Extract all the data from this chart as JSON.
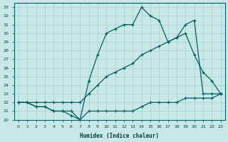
{
  "xlabel": "Humidex (Indice chaleur)",
  "bg_color": "#c8e8e8",
  "line_color": "#006060",
  "xlim": [
    -0.5,
    23.5
  ],
  "ylim": [
    20,
    33.5
  ],
  "xticks": [
    0,
    1,
    2,
    3,
    4,
    5,
    6,
    7,
    8,
    9,
    10,
    11,
    12,
    13,
    14,
    15,
    16,
    17,
    18,
    19,
    20,
    21,
    22,
    23
  ],
  "yticks": [
    20,
    21,
    22,
    23,
    24,
    25,
    26,
    27,
    28,
    29,
    30,
    31,
    32,
    33
  ],
  "line1_x": [
    0,
    1,
    2,
    3,
    4,
    5,
    6,
    7,
    8,
    9,
    10,
    11,
    12,
    13,
    14,
    15,
    16,
    17,
    18,
    19,
    20,
    21,
    22,
    23
  ],
  "line1_y": [
    22,
    22,
    21.5,
    21.5,
    21,
    21,
    20.5,
    20,
    24.5,
    27.5,
    30,
    30.5,
    31,
    31,
    33,
    32,
    31.5,
    29,
    29.5,
    31,
    31.5,
    23,
    23,
    23
  ],
  "line2_x": [
    0,
    1,
    2,
    3,
    4,
    5,
    6,
    7,
    8,
    9,
    10,
    11,
    12,
    13,
    14,
    15,
    16,
    17,
    18,
    19,
    20,
    21,
    22,
    23
  ],
  "line2_y": [
    22,
    22,
    22,
    22,
    22,
    22,
    22,
    22,
    23,
    24,
    25,
    25.5,
    26,
    26.5,
    27.5,
    28,
    28.5,
    29,
    29.5,
    30,
    27.5,
    25.5,
    24.5,
    23
  ],
  "line3_x": [
    0,
    1,
    2,
    3,
    4,
    5,
    6,
    7,
    8,
    9,
    10,
    11,
    12,
    13,
    14,
    15,
    16,
    17,
    18,
    19,
    20,
    21,
    22,
    23
  ],
  "line3_y": [
    22,
    22,
    21.5,
    21.5,
    21,
    21,
    21,
    20,
    21,
    21,
    21,
    21,
    21,
    21,
    21.5,
    22,
    22,
    22,
    22,
    22.5,
    22.5,
    22.5,
    22.5,
    23
  ]
}
